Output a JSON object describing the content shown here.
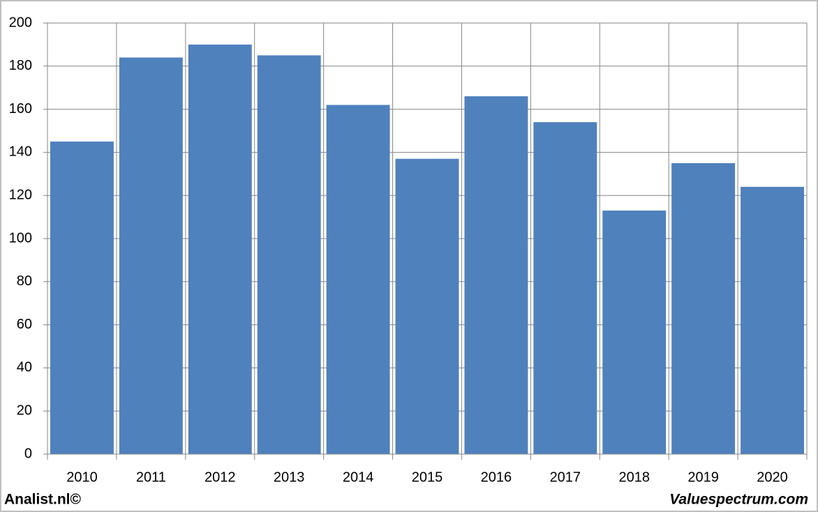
{
  "chart_data": {
    "type": "bar",
    "categories": [
      "2010",
      "2011",
      "2012",
      "2013",
      "2014",
      "2015",
      "2016",
      "2017",
      "2018",
      "2019",
      "2020"
    ],
    "values": [
      145,
      184,
      190,
      185,
      162,
      137,
      166,
      154,
      113,
      135,
      124
    ],
    "color": "#4f81bd",
    "ylim": [
      0,
      200
    ],
    "yticks": [
      0,
      20,
      40,
      60,
      80,
      100,
      120,
      140,
      160,
      180,
      200
    ],
    "grid": true,
    "annotations": [
      "Analist.nl©",
      "Valuespectrum.com"
    ]
  }
}
